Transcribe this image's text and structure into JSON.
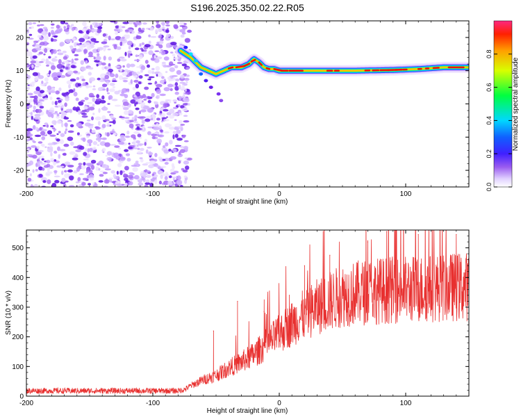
{
  "title": "S196.2025.350.02.22.R05",
  "chart_data": [
    {
      "type": "heatmap",
      "name": "spectrogram",
      "xlabel": "Height of straight line (km)",
      "ylabel": "Frequency (Hz)",
      "xlim": [
        -200,
        150
      ],
      "ylim": [
        -25,
        25
      ],
      "xticks": [
        -200,
        -100,
        0,
        100
      ],
      "yticks": [
        20,
        10,
        0,
        -10,
        -20
      ],
      "noise_region": {
        "x": [
          -200,
          -75
        ],
        "description_values": "scattered low-amplitude blobs 0.0-0.25"
      },
      "ridge": {
        "x": [
          -78,
          -70,
          -62,
          -56,
          -50,
          -44,
          -38,
          -30,
          -24,
          -20,
          -16,
          -12,
          -8,
          -4,
          0,
          10,
          30,
          60,
          90,
          110,
          130,
          150
        ],
        "freq": [
          16,
          14,
          11,
          10,
          9,
          10,
          11,
          11,
          12,
          13.5,
          12.5,
          11,
          10.5,
          10.5,
          10,
          10,
          10,
          10,
          10.2,
          10.5,
          11,
          11
        ]
      },
      "colorbar": {
        "label": "Normalized spectral amplitude",
        "range": [
          0.0,
          1.0
        ],
        "ticks": [
          "0.0",
          "0.2",
          "0.4",
          "0.6",
          "0.8"
        ]
      }
    },
    {
      "type": "line",
      "name": "snr",
      "xlabel": "Height of straight line (km)",
      "ylabel": "SNR (10 * v/v)",
      "xlim": [
        -200,
        150
      ],
      "ylim": [
        0,
        560
      ],
      "xticks": [
        -200,
        -100,
        0,
        100
      ],
      "yticks": [
        0,
        100,
        200,
        300,
        400,
        500
      ],
      "color": "#e8302f",
      "trend": {
        "x": [
          -200,
          -80,
          -75,
          -70,
          -60,
          -50,
          -40,
          -30,
          -20,
          -10,
          0,
          10,
          20,
          30,
          40,
          50,
          75,
          100,
          125,
          150
        ],
        "y": [
          18,
          18,
          22,
          35,
          55,
          70,
          95,
          115,
          140,
          175,
          210,
          245,
          275,
          300,
          320,
          340,
          355,
          360,
          365,
          370
        ]
      },
      "spikes": [
        {
          "x": -52,
          "y": 220
        },
        {
          "x": -33,
          "y": 320
        },
        {
          "x": -12,
          "y": 285
        },
        {
          "x": 8,
          "y": 340
        },
        {
          "x": 20,
          "y": 440
        },
        {
          "x": 40,
          "y": 475
        },
        {
          "x": 70,
          "y": 520
        },
        {
          "x": 85,
          "y": 555
        },
        {
          "x": 110,
          "y": 545
        },
        {
          "x": 140,
          "y": 545
        }
      ]
    }
  ]
}
